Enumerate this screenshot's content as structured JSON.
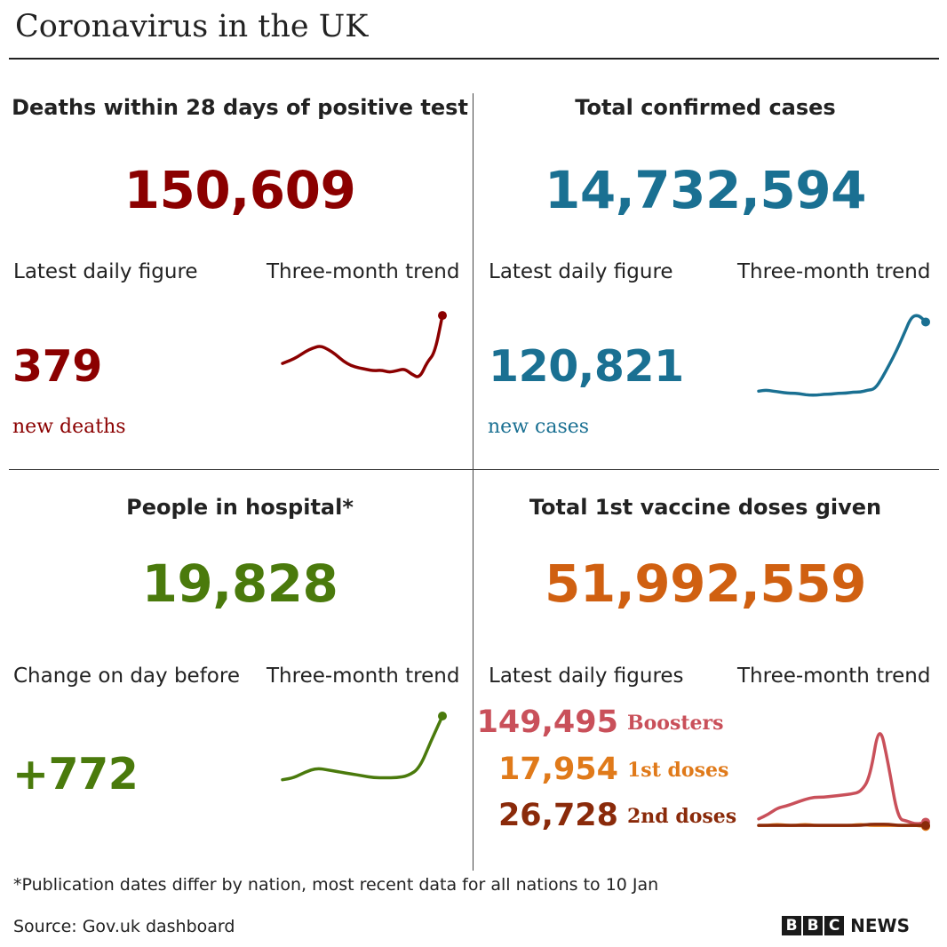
{
  "title": "Coronavirus in the UK",
  "colors": {
    "deaths": "#8b0000",
    "cases": "#1a7092",
    "hospital": "#4a7a0c",
    "vaccine": "#d06011",
    "boosters": "#c9505a",
    "first_doses": "#e07a1a",
    "second_doses": "#8a2a0a"
  },
  "deaths": {
    "heading": "Deaths within 28 days of positive test",
    "total": "150,609",
    "latest_label": "Latest daily figure",
    "trend_label": "Three-month trend",
    "latest_value": "379",
    "unit": "new deaths"
  },
  "cases": {
    "heading": "Total confirmed cases",
    "total": "14,732,594",
    "latest_label": "Latest daily figure",
    "trend_label": "Three-month trend",
    "latest_value": "120,821",
    "unit": "new cases"
  },
  "hospital": {
    "heading": "People in hospital*",
    "total": "19,828",
    "latest_label": "Change on day before",
    "trend_label": "Three-month trend",
    "latest_value": "+772"
  },
  "vaccine": {
    "heading": "Total 1st vaccine doses given",
    "total": "51,992,559",
    "latest_label": "Latest daily figures",
    "trend_label": "Three-month trend",
    "boosters_value": "149,495",
    "boosters_label": "Boosters",
    "first_value": "17,954",
    "first_label": "1st doses",
    "second_value": "26,728",
    "second_label": "2nd doses"
  },
  "footnote": "*Publication dates differ by nation, most recent data for all nations to 10 Jan",
  "source": "Source: Gov.uk dashboard",
  "logo": {
    "letters": [
      "B",
      "B",
      "C"
    ],
    "news": "NEWS"
  },
  "chart_data": [
    {
      "type": "line",
      "series": [
        {
          "values": [
            110,
            114,
            119,
            126,
            131,
            134,
            129,
            122,
            113,
            107,
            104,
            102,
            100,
            101,
            98,
            100,
            103,
            95,
            90,
            112,
            124,
            175
          ]
        }
      ],
      "ylim": [
        80,
        180
      ]
    },
    {
      "type": "line",
      "series": [
        {
          "values": [
            12,
            13,
            12,
            11,
            10,
            10,
            9,
            8,
            8,
            9,
            9,
            10,
            10,
            11,
            11,
            13,
            14,
            25,
            38,
            52,
            68,
            85,
            87,
            80
          ]
        }
      ],
      "ylim": [
        0,
        90
      ]
    },
    {
      "type": "line",
      "series": [
        {
          "values": [
            2,
            3,
            6,
            8,
            7,
            6,
            5,
            4,
            3,
            3,
            3,
            4,
            8,
            22,
            35
          ]
        }
      ],
      "ylim": [
        0,
        35
      ]
    },
    {
      "type": "line",
      "series": [
        {
          "name": "Boosters",
          "values": [
            10,
            14,
            20,
            22,
            25,
            28,
            30,
            30,
            31,
            32,
            33,
            35,
            48,
            100,
            60,
            10,
            8,
            5,
            7
          ]
        },
        {
          "name": "1st doses",
          "values": [
            4,
            4,
            5,
            4,
            4,
            5,
            4,
            4,
            4,
            4,
            4,
            5,
            4,
            4,
            4,
            4,
            4,
            4,
            3
          ]
        },
        {
          "name": "2nd doses",
          "values": [
            4,
            4,
            4,
            4,
            4,
            4,
            4,
            4,
            4,
            4,
            4,
            4,
            5,
            5,
            5,
            4,
            4,
            4,
            4
          ]
        }
      ],
      "ylim": [
        0,
        105
      ]
    }
  ]
}
